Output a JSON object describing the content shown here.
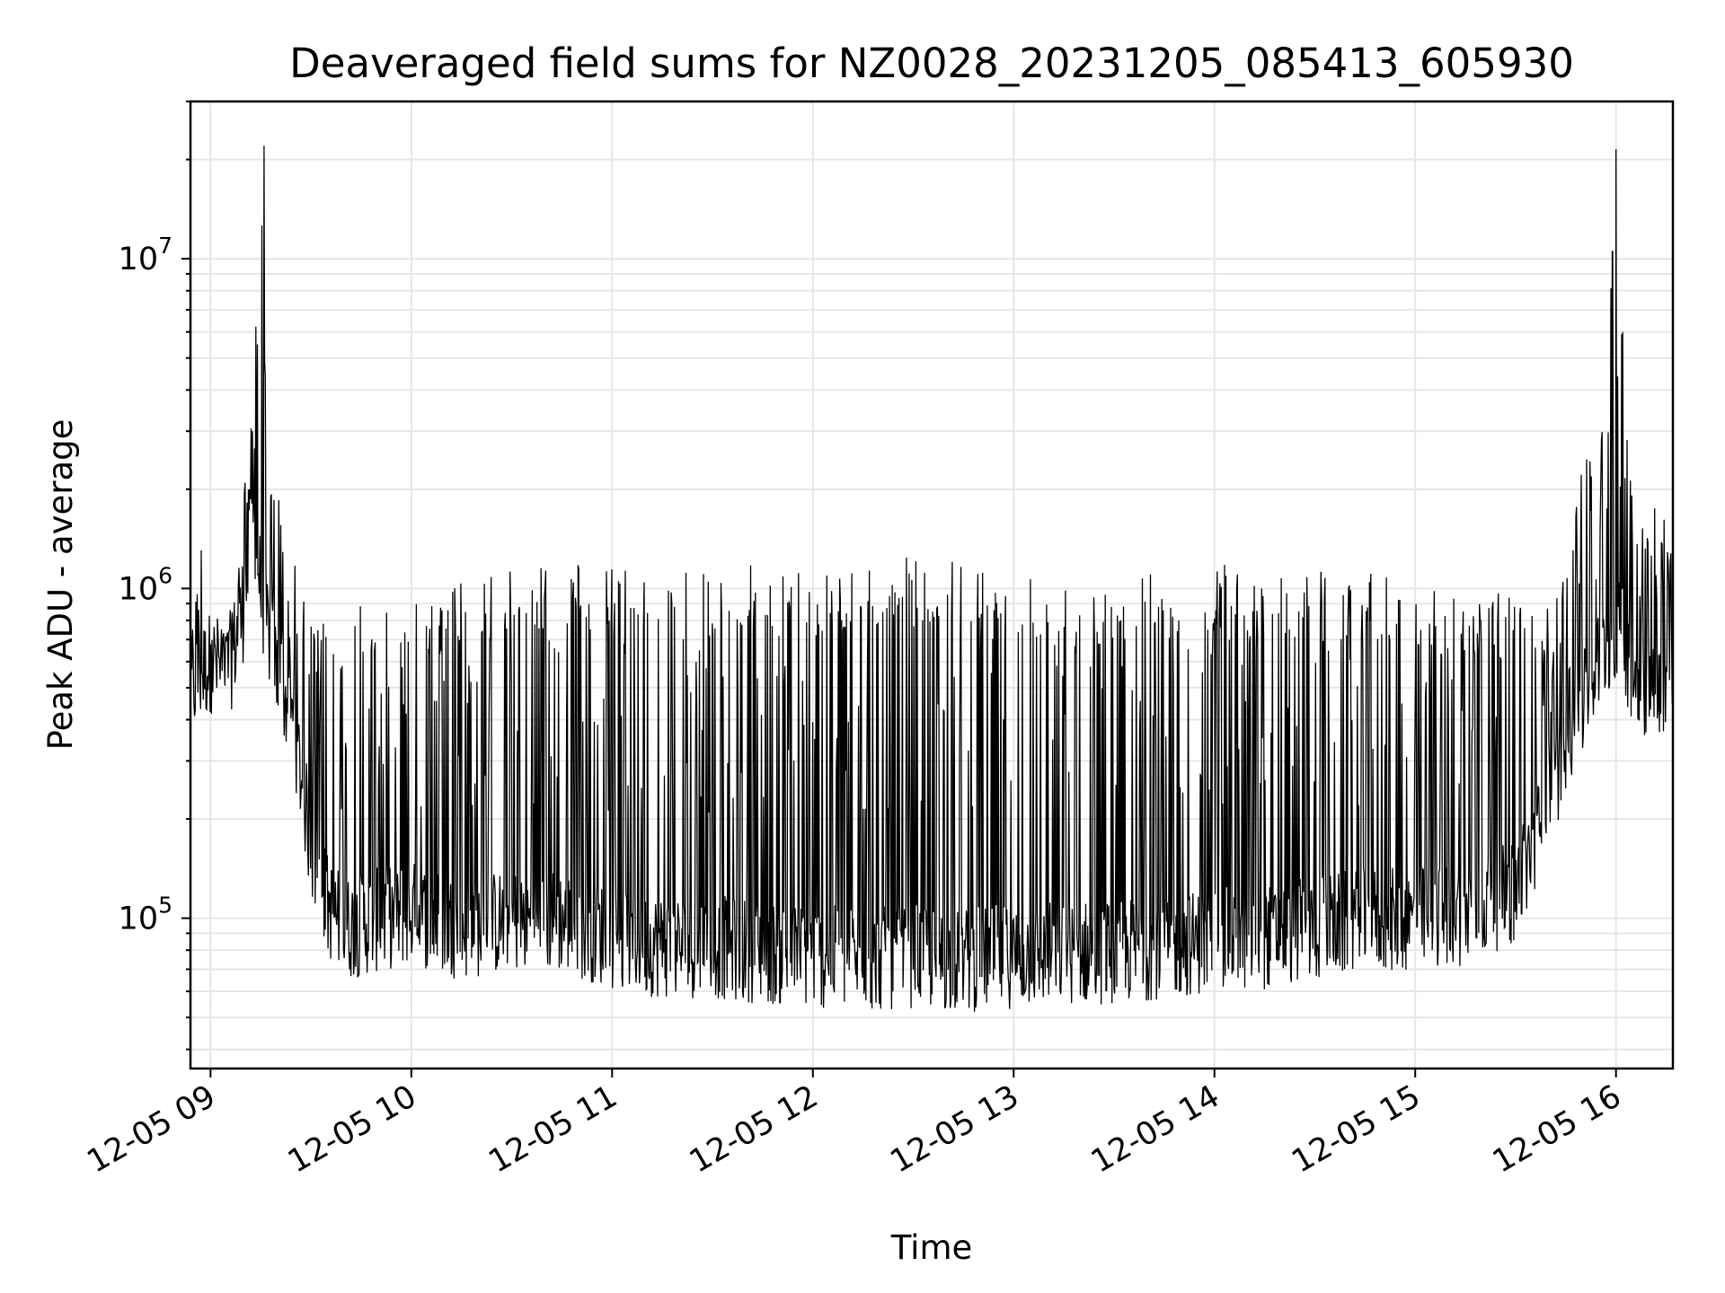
{
  "chart_data": {
    "type": "line",
    "title": "Deaveraged field sums for NZ0028_20231205_085413_605930",
    "xlabel": "Time",
    "ylabel": "Peak ADU - average",
    "yscale": "log",
    "grid": true,
    "legend": "none",
    "line_color": "#000000",
    "xlim": [
      "2023-12-05 08:54",
      "2023-12-05 16:17"
    ],
    "ylim": [
      35000,
      30000000
    ],
    "x_ticks": [
      {
        "value": "2023-12-05 09:00",
        "label": "12-05 09"
      },
      {
        "value": "2023-12-05 10:00",
        "label": "12-05 10"
      },
      {
        "value": "2023-12-05 11:00",
        "label": "12-05 11"
      },
      {
        "value": "2023-12-05 12:00",
        "label": "12-05 12"
      },
      {
        "value": "2023-12-05 13:00",
        "label": "12-05 13"
      },
      {
        "value": "2023-12-05 14:00",
        "label": "12-05 14"
      },
      {
        "value": "2023-12-05 15:00",
        "label": "12-05 15"
      },
      {
        "value": "2023-12-05 16:00",
        "label": "12-05 16"
      }
    ],
    "y_ticks": [
      {
        "value": 100000,
        "base": "10",
        "exp": "5"
      },
      {
        "value": 1000000,
        "base": "10",
        "exp": "6"
      },
      {
        "value": 10000000,
        "base": "10",
        "exp": "7"
      }
    ],
    "series": [
      {
        "x": [
          "2023-12-05 08:54",
          "2023-12-05 08:57",
          "2023-12-05 09:00",
          "2023-12-05 09:05",
          "2023-12-05 09:10",
          "2023-12-05 09:13",
          "2023-12-05 09:15",
          "2023-12-05 09:17",
          "2023-12-05 09:20",
          "2023-12-05 09:25",
          "2023-12-05 09:30",
          "2023-12-05 09:35",
          "2023-12-05 09:40",
          "2023-12-05 09:50",
          "2023-12-05 10:00",
          "2023-12-05 10:15",
          "2023-12-05 10:30",
          "2023-12-05 10:45",
          "2023-12-05 11:00",
          "2023-12-05 11:15",
          "2023-12-05 11:30",
          "2023-12-05 11:45",
          "2023-12-05 12:00",
          "2023-12-05 12:15",
          "2023-12-05 12:30",
          "2023-12-05 12:45",
          "2023-12-05 13:00",
          "2023-12-05 13:15",
          "2023-12-05 13:30",
          "2023-12-05 13:45",
          "2023-12-05 14:00",
          "2023-12-05 14:15",
          "2023-12-05 14:30",
          "2023-12-05 14:45",
          "2023-12-05 15:00",
          "2023-12-05 15:15",
          "2023-12-05 15:30",
          "2023-12-05 15:40",
          "2023-12-05 15:45",
          "2023-12-05 15:50",
          "2023-12-05 15:55",
          "2023-12-05 16:00",
          "2023-12-05 16:03",
          "2023-12-05 16:05",
          "2023-12-05 16:10",
          "2023-12-05 16:17"
        ],
        "base": [
          450000,
          500000,
          550000,
          500000,
          800000,
          1500000,
          900000,
          700000,
          500000,
          350000,
          150000,
          100000,
          85000,
          90000,
          95000,
          85000,
          90000,
          90000,
          80000,
          75000,
          75000,
          72000,
          70000,
          68000,
          70000,
          68000,
          70000,
          72000,
          72000,
          75000,
          78000,
          80000,
          85000,
          90000,
          90000,
          95000,
          110000,
          200000,
          320000,
          400000,
          550000,
          700000,
          600000,
          500000,
          450000,
          500000
        ],
        "peak": [
          700000,
          1600000,
          900000,
          800000,
          2000000,
          5500000,
          22000000,
          3000000,
          2000000,
          1300000,
          800000,
          800000,
          900000,
          1000000,
          950000,
          1050000,
          1150000,
          1250000,
          1150000,
          1150000,
          1100000,
          1200000,
          1150000,
          1200000,
          1250000,
          1200000,
          1150000,
          1050000,
          1100000,
          1150000,
          1200000,
          1150000,
          1150000,
          1150000,
          1050000,
          1000000,
          950000,
          900000,
          1200000,
          2500000,
          3000000,
          21000000,
          5000000,
          2200000,
          1800000,
          1600000
        ],
        "annotated_peaks": [
          {
            "x": "2023-12-05 09:16",
            "y": 22000000
          },
          {
            "x": "2023-12-05 16:00",
            "y": 21500000
          },
          {
            "x": "2023-12-05 15:59",
            "y": 10500000
          },
          {
            "x": "2023-12-05 16:02",
            "y": 6000000
          },
          {
            "x": "2023-12-05 09:14",
            "y": 5500000
          }
        ]
      }
    ]
  }
}
